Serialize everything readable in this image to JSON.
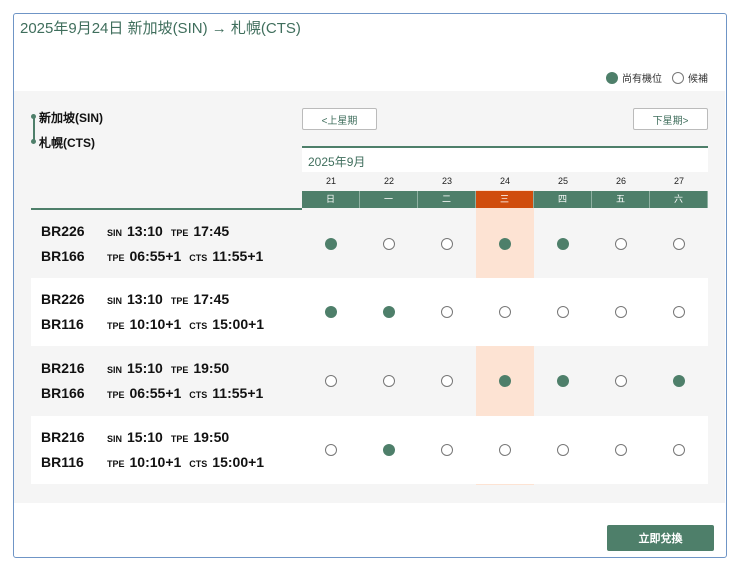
{
  "title": "2025年9月24日 新加坡(SIN) → 札幌(CTS)",
  "legend": {
    "available": "尚有機位",
    "waitlist": "候補"
  },
  "route": {
    "from": "新加坡(SIN)",
    "to": "札幌(CTS)"
  },
  "nav": {
    "prev": "<上星期",
    "next": "下星期>"
  },
  "month": "2025年9月",
  "days": [
    "21",
    "22",
    "23",
    "24",
    "25",
    "26",
    "27"
  ],
  "weekdays": [
    "日",
    "一",
    "二",
    "三",
    "四",
    "五",
    "六"
  ],
  "selected_index": 3,
  "colors": {
    "accent": "#4e7f6a",
    "selected": "#d04d0d",
    "highlight": "#fde3d3"
  },
  "rows": [
    {
      "seg1": {
        "flight": "BR226",
        "dep": "SIN",
        "dep_time": "13:10",
        "arr": "TPE",
        "arr_time": "17:45"
      },
      "seg2": {
        "flight": "BR166",
        "dep": "TPE",
        "dep_time": "06:55+1",
        "arr": "CTS",
        "arr_time": "11:55+1"
      },
      "avail": [
        true,
        false,
        false,
        true,
        true,
        false,
        false
      ]
    },
    {
      "seg1": {
        "flight": "BR226",
        "dep": "SIN",
        "dep_time": "13:10",
        "arr": "TPE",
        "arr_time": "17:45"
      },
      "seg2": {
        "flight": "BR116",
        "dep": "TPE",
        "dep_time": "10:10+1",
        "arr": "CTS",
        "arr_time": "15:00+1"
      },
      "avail": [
        true,
        true,
        false,
        false,
        false,
        false,
        false
      ]
    },
    {
      "seg1": {
        "flight": "BR216",
        "dep": "SIN",
        "dep_time": "15:10",
        "arr": "TPE",
        "arr_time": "19:50"
      },
      "seg2": {
        "flight": "BR166",
        "dep": "TPE",
        "dep_time": "06:55+1",
        "arr": "CTS",
        "arr_time": "11:55+1"
      },
      "avail": [
        false,
        false,
        false,
        true,
        true,
        false,
        true
      ]
    },
    {
      "seg1": {
        "flight": "BR216",
        "dep": "SIN",
        "dep_time": "15:10",
        "arr": "TPE",
        "arr_time": "19:50"
      },
      "seg2": {
        "flight": "BR116",
        "dep": "TPE",
        "dep_time": "10:10+1",
        "arr": "CTS",
        "arr_time": "15:00+1"
      },
      "avail": [
        false,
        true,
        false,
        false,
        false,
        false,
        false
      ]
    }
  ],
  "submit": "立即兌換"
}
